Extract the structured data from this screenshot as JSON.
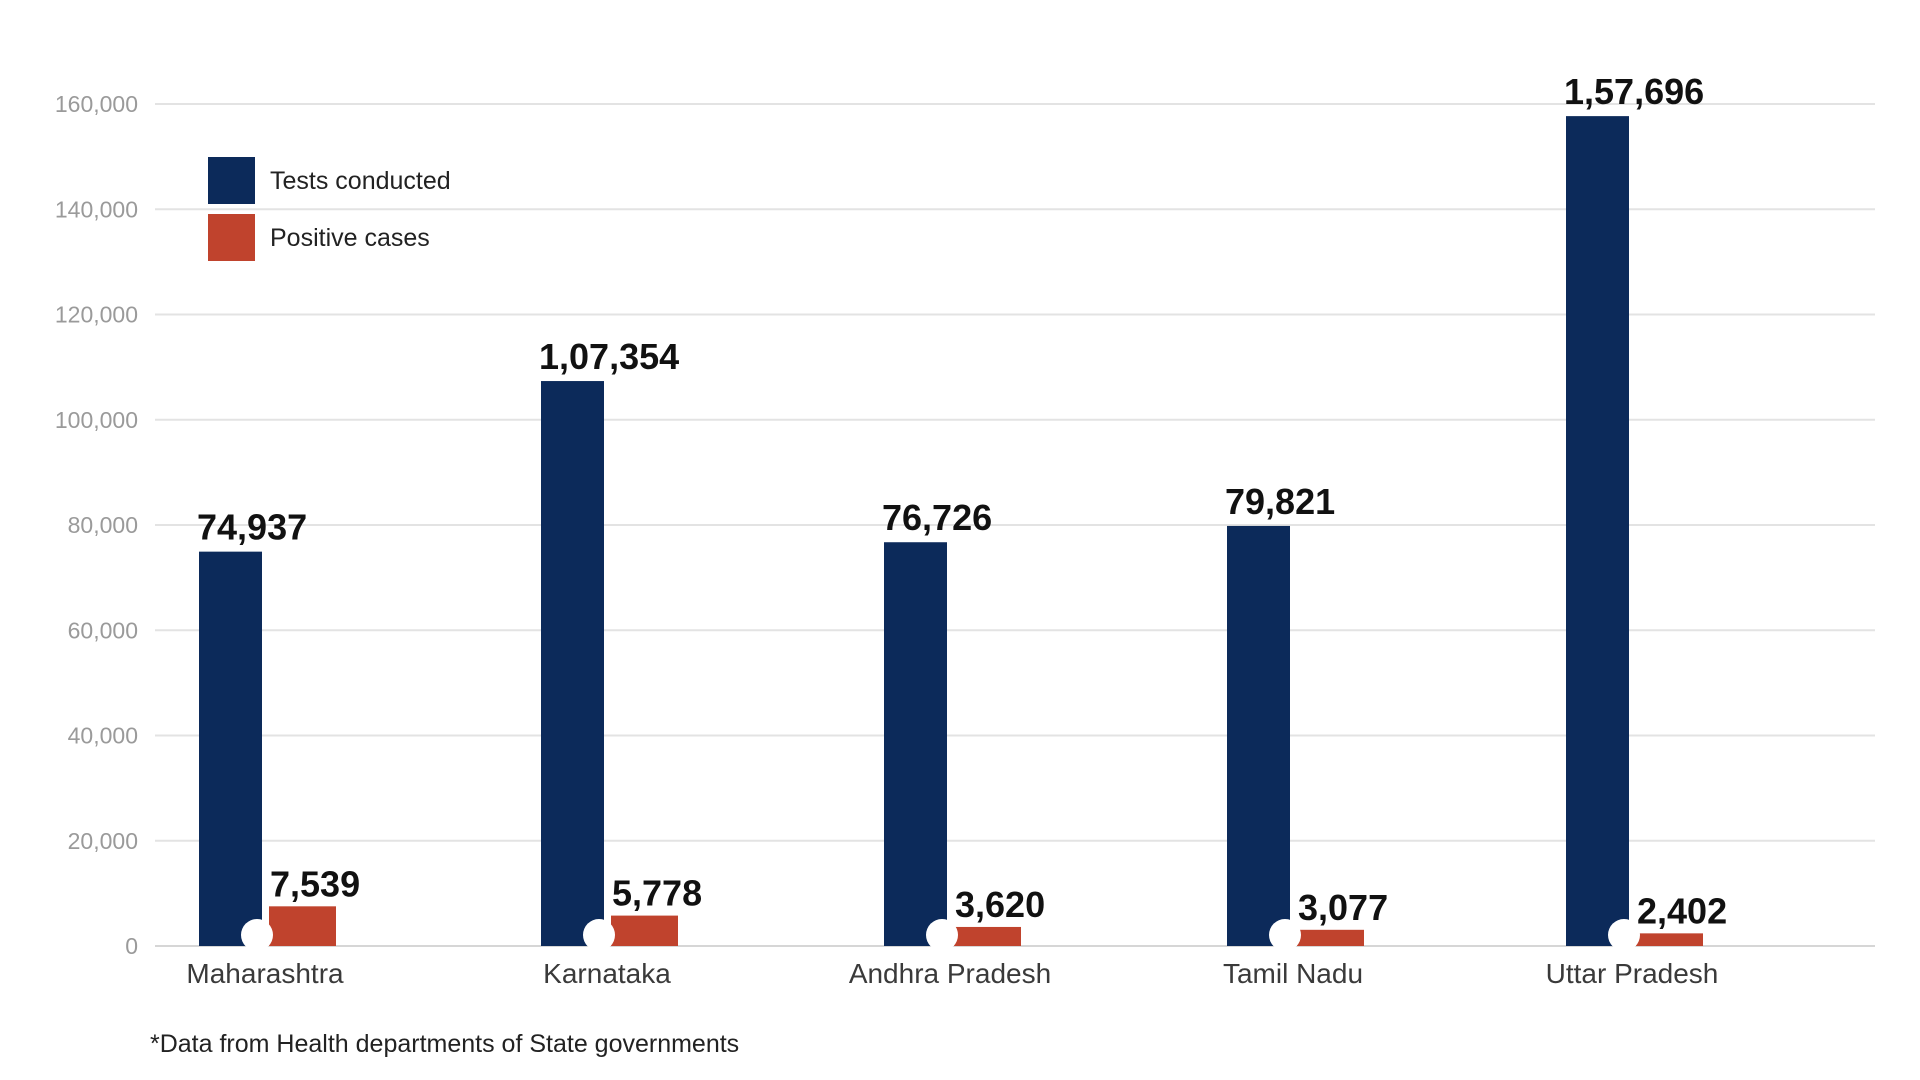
{
  "chart_data": {
    "type": "bar",
    "categories": [
      "Maharashtra",
      "Karnataka",
      "Andhra Pradesh",
      "Tamil Nadu",
      "Uttar Pradesh"
    ],
    "series": [
      {
        "name": "Tests conducted",
        "color": "#0c2a5a",
        "values": [
          74937,
          107354,
          76726,
          79821,
          157696
        ],
        "labels": [
          "74,937",
          "1,07,354",
          "76,726",
          "79,821",
          "1,57,696"
        ]
      },
      {
        "name": "Positive cases",
        "color": "#c0432d",
        "values": [
          7539,
          5778,
          3620,
          3077,
          2402
        ],
        "labels": [
          "7,539",
          "5,778",
          "3,620",
          "3,077",
          "2,402"
        ]
      }
    ],
    "y_ticks": [
      "0",
      "20,000",
      "40,000",
      "60,000",
      "80,000",
      "100,000",
      "120,000",
      "140,000",
      "160,000"
    ],
    "ylim": [
      0,
      160000
    ],
    "grid": true,
    "legend_position": "top-left",
    "footnote": "*Data from Health departments of State governments"
  }
}
